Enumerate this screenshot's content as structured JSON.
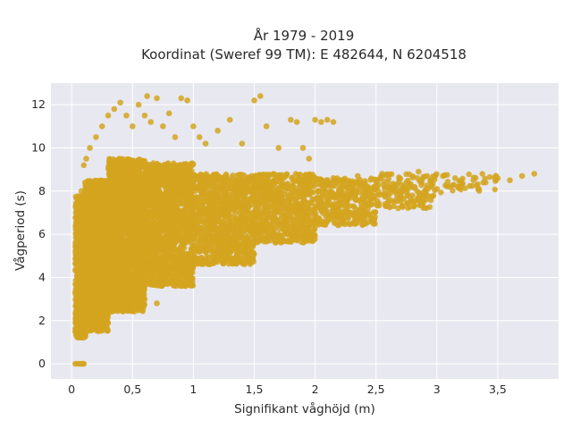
{
  "chart_data": {
    "type": "scatter",
    "title_lines": [
      "År 1979 - 2019",
      "Koordinat (Sweref 99 TM): E 482644, N 6204518"
    ],
    "xlabel": "Signifikant våghöjd (m)",
    "ylabel": "Vågperiod (s)",
    "xlim": [
      -0.17,
      4.0
    ],
    "ylim": [
      -0.7,
      13.0
    ],
    "x_ticks": [
      0,
      0.5,
      1,
      1.5,
      2,
      2.5,
      3,
      3.5
    ],
    "x_tick_labels": [
      "0",
      "0,5",
      "1",
      "1,5",
      "2",
      "2,5",
      "3",
      "3,5"
    ],
    "y_ticks": [
      0,
      2,
      4,
      6,
      8,
      10,
      12
    ],
    "y_tick_labels": [
      "0",
      "2",
      "4",
      "6",
      "8",
      "10",
      "12"
    ],
    "grid": true,
    "legend": false,
    "colors": {
      "points": "#d4a520",
      "plot_background": "#e8e8f0",
      "grid": "#ffffff"
    },
    "points": [
      [
        0.03,
        0.0
      ],
      [
        0.05,
        0.0
      ],
      [
        0.07,
        0.0
      ],
      [
        0.09,
        0.0
      ],
      [
        0.1,
        0.0
      ],
      [
        0.03,
        1.5
      ],
      [
        0.04,
        1.3
      ],
      [
        0.05,
        2.2
      ],
      [
        0.06,
        1.8
      ],
      [
        0.07,
        2.8
      ],
      [
        0.08,
        3.5
      ],
      [
        0.09,
        4.5
      ],
      [
        0.1,
        5.5
      ],
      [
        0.12,
        6.0
      ],
      [
        0.15,
        6.5
      ],
      [
        0.18,
        1.8
      ],
      [
        0.2,
        2.0
      ],
      [
        0.05,
        7.4
      ],
      [
        0.08,
        8.0
      ],
      [
        0.1,
        9.2
      ],
      [
        0.12,
        9.5
      ],
      [
        0.15,
        10.0
      ],
      [
        0.2,
        10.5
      ],
      [
        0.25,
        11.0
      ],
      [
        0.3,
        11.5
      ],
      [
        0.35,
        11.8
      ],
      [
        0.4,
        12.1
      ],
      [
        0.45,
        11.5
      ],
      [
        0.5,
        11.0
      ],
      [
        0.55,
        12.0
      ],
      [
        0.6,
        11.5
      ],
      [
        0.62,
        12.4
      ],
      [
        0.65,
        11.2
      ],
      [
        0.7,
        12.3
      ],
      [
        0.75,
        11.0
      ],
      [
        0.8,
        11.6
      ],
      [
        0.85,
        10.5
      ],
      [
        0.9,
        12.3
      ],
      [
        0.95,
        12.2
      ],
      [
        1.0,
        11.0
      ],
      [
        1.05,
        10.5
      ],
      [
        1.1,
        10.2
      ],
      [
        1.2,
        10.8
      ],
      [
        1.3,
        11.3
      ],
      [
        1.4,
        10.2
      ],
      [
        1.5,
        12.2
      ],
      [
        1.55,
        12.4
      ],
      [
        1.6,
        11.0
      ],
      [
        1.7,
        10.0
      ],
      [
        1.8,
        11.3
      ],
      [
        1.85,
        11.2
      ],
      [
        1.9,
        10.0
      ],
      [
        1.95,
        9.5
      ],
      [
        2.0,
        11.3
      ],
      [
        2.05,
        11.2
      ],
      [
        2.1,
        11.3
      ],
      [
        2.15,
        11.2
      ],
      [
        0.2,
        6.0
      ],
      [
        0.25,
        4.0
      ],
      [
        0.3,
        3.0
      ],
      [
        0.35,
        5.0
      ],
      [
        0.4,
        2.5
      ],
      [
        0.45,
        7.0
      ],
      [
        0.5,
        2.5
      ],
      [
        0.55,
        5.5
      ],
      [
        0.6,
        3.0
      ],
      [
        0.65,
        6.5
      ],
      [
        0.7,
        2.8
      ],
      [
        0.75,
        7.5
      ],
      [
        0.8,
        3.8
      ],
      [
        0.85,
        8.5
      ],
      [
        0.9,
        4.2
      ],
      [
        0.95,
        6.0
      ],
      [
        1.0,
        4.5
      ],
      [
        1.05,
        7.0
      ],
      [
        1.1,
        4.8
      ],
      [
        1.15,
        8.0
      ],
      [
        1.2,
        5.0
      ],
      [
        1.25,
        6.5
      ],
      [
        1.3,
        5.2
      ],
      [
        1.35,
        7.5
      ],
      [
        1.4,
        5.4
      ],
      [
        1.45,
        8.0
      ],
      [
        1.5,
        5.6
      ],
      [
        1.55,
        7.0
      ],
      [
        1.6,
        5.8
      ],
      [
        1.65,
        7.6
      ],
      [
        1.7,
        6.0
      ],
      [
        1.75,
        8.2
      ],
      [
        1.8,
        6.2
      ],
      [
        1.85,
        7.2
      ],
      [
        1.9,
        6.3
      ],
      [
        1.95,
        8.5
      ],
      [
        2.0,
        6.5
      ],
      [
        2.05,
        7.5
      ],
      [
        2.1,
        6.6
      ],
      [
        2.15,
        8.6
      ],
      [
        2.2,
        6.8
      ],
      [
        2.25,
        7.8
      ],
      [
        2.3,
        7.0
      ],
      [
        2.35,
        8.7
      ],
      [
        2.4,
        7.2
      ],
      [
        2.45,
        8.0
      ],
      [
        2.5,
        7.4
      ],
      [
        2.55,
        8.8
      ],
      [
        2.6,
        7.5
      ],
      [
        2.65,
        8.2
      ],
      [
        2.7,
        7.7
      ],
      [
        2.75,
        8.4
      ],
      [
        2.8,
        7.8
      ],
      [
        2.85,
        8.9
      ],
      [
        2.9,
        8.0
      ],
      [
        2.95,
        8.5
      ],
      [
        3.0,
        8.1
      ],
      [
        3.05,
        8.7
      ],
      [
        3.1,
        8.2
      ],
      [
        3.15,
        8.6
      ],
      [
        3.2,
        8.3
      ],
      [
        3.3,
        8.5
      ],
      [
        3.4,
        8.4
      ],
      [
        3.5,
        8.6
      ],
      [
        3.6,
        8.5
      ],
      [
        3.7,
        8.7
      ],
      [
        3.8,
        8.8
      ]
    ],
    "dense_regions": [
      {
        "x": [
          0.03,
          0.12
        ],
        "y": [
          1.2,
          7.8
        ],
        "count": 700
      },
      {
        "x": [
          0.1,
          0.3
        ],
        "y": [
          1.5,
          8.5
        ],
        "count": 1400
      },
      {
        "x": [
          0.3,
          0.6
        ],
        "y": [
          2.4,
          9.5
        ],
        "count": 1800
      },
      {
        "x": [
          0.6,
          1.0
        ],
        "y": [
          3.6,
          9.3
        ],
        "count": 1500
      },
      {
        "x": [
          1.0,
          1.5
        ],
        "y": [
          4.6,
          8.8
        ],
        "count": 1000
      },
      {
        "x": [
          1.5,
          2.0
        ],
        "y": [
          5.6,
          8.8
        ],
        "count": 700
      },
      {
        "x": [
          2.0,
          2.5
        ],
        "y": [
          6.4,
          8.6
        ],
        "count": 380
      },
      {
        "x": [
          2.5,
          3.0
        ],
        "y": [
          7.2,
          8.8
        ],
        "count": 160
      },
      {
        "x": [
          3.0,
          3.5
        ],
        "y": [
          7.9,
          8.8
        ],
        "count": 40
      }
    ]
  }
}
